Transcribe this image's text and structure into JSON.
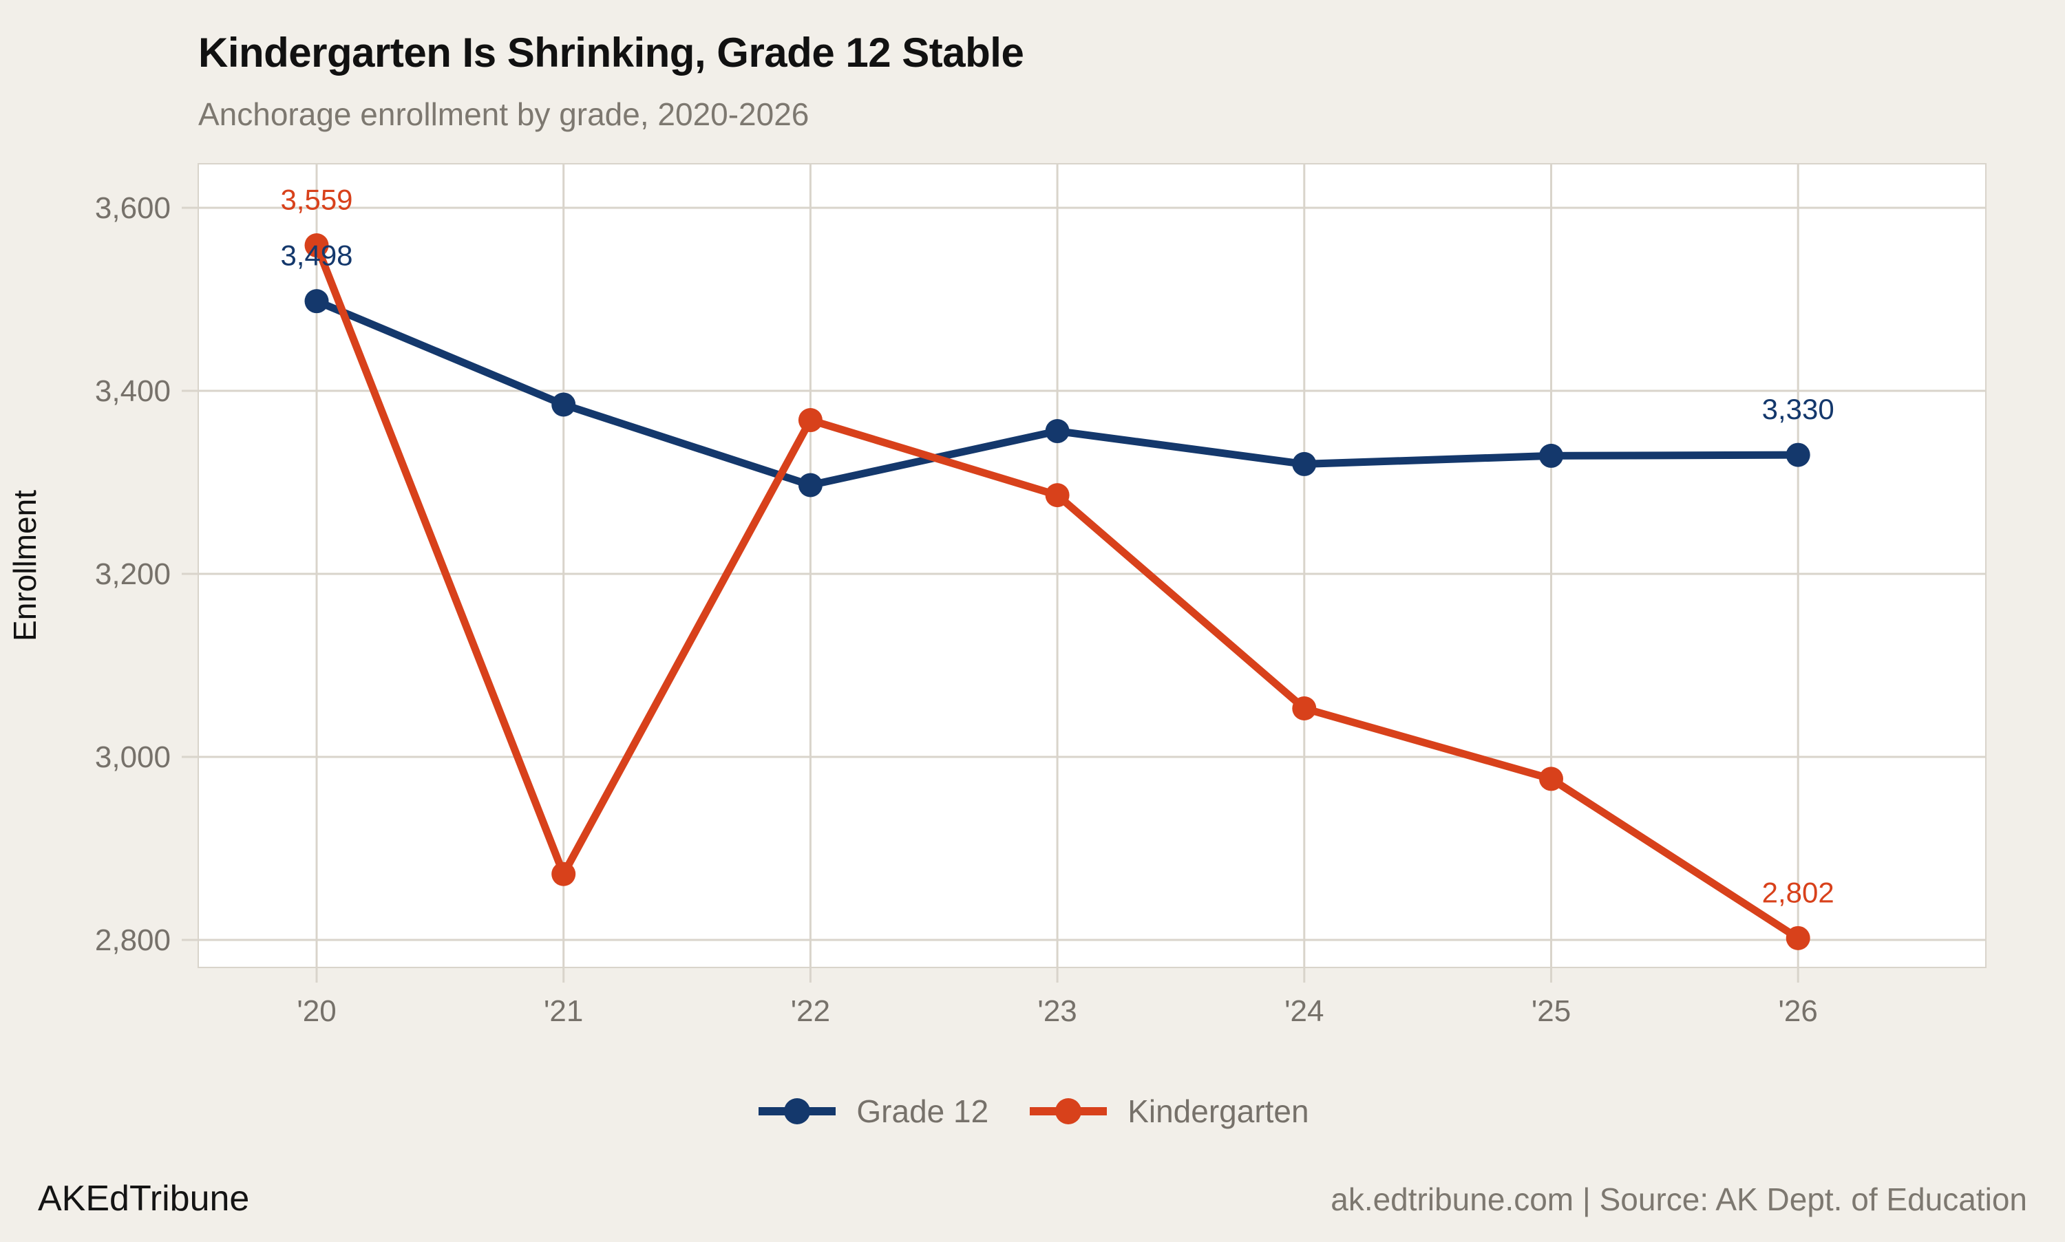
{
  "header": {
    "title": "Kindergarten Is Shrinking, Grade 12 Stable",
    "subtitle": "Anchorage enrollment by grade, 2020-2026"
  },
  "chart_data": {
    "type": "line",
    "title": "Kindergarten Is Shrinking, Grade 12 Stable",
    "subtitle": "Anchorage enrollment by grade, 2020-2026",
    "categories": [
      "'20",
      "'21",
      "'22",
      "'23",
      "'24",
      "'25",
      "'26"
    ],
    "series": [
      {
        "name": "Grade 12",
        "color": "#14386C",
        "values": [
          3498,
          3385,
          3297,
          3356,
          3320,
          3329,
          3330
        ]
      },
      {
        "name": "Kindergarten",
        "color": "#D8411B",
        "values": [
          3559,
          2872,
          3368,
          3286,
          3053,
          2976,
          2802
        ]
      }
    ],
    "xlabel": "",
    "ylabel": "Enrollment",
    "y_ticks": [
      2800,
      3000,
      3200,
      3400,
      3600
    ],
    "y_tick_labels": [
      "2,800",
      "3,000",
      "3,200",
      "3,400",
      "3,600"
    ],
    "ylim": [
      2770,
      3648
    ],
    "grid": true,
    "legend_position": "bottom",
    "annotations": [
      {
        "series": "Kindergarten",
        "index": 0,
        "label": "3,559"
      },
      {
        "series": "Grade 12",
        "index": 0,
        "label": "3,498"
      },
      {
        "series": "Grade 12",
        "index": 6,
        "label": "3,330"
      },
      {
        "series": "Kindergarten",
        "index": 6,
        "label": "2,802"
      }
    ]
  },
  "colors": {
    "background": "#F2EFE9",
    "plot_background": "#FFFFFF",
    "grid": "#D9D4CB",
    "axis_text": "#76716A",
    "axis_title_text": "#111111",
    "title_text": "#111111"
  },
  "footer": {
    "brand": "AKEdTribune",
    "source_line": "ak.edtribune.com | Source: AK Dept. of Education"
  }
}
